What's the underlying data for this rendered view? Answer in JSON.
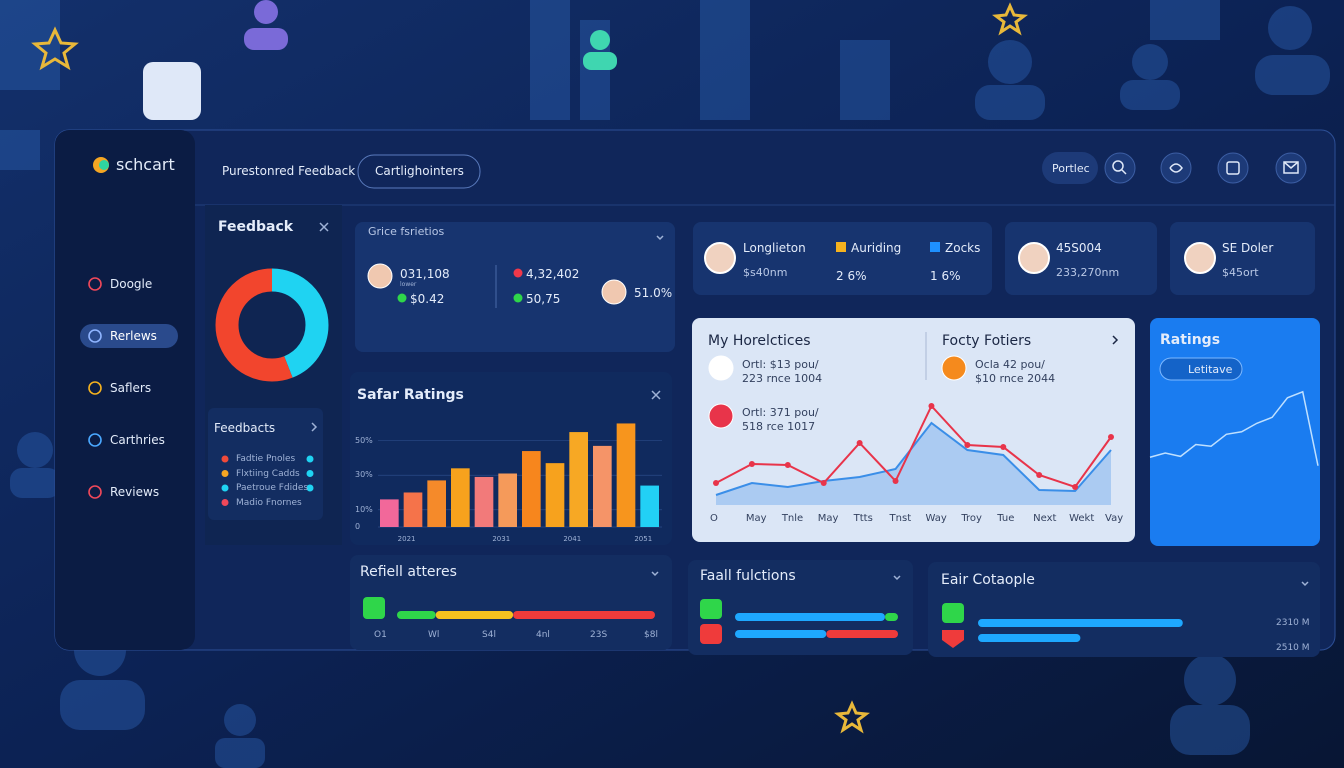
{
  "header": {
    "brand": "schcart",
    "tab": "Purestonred Feedback",
    "button": "Cartlighointers",
    "pill": "Portlec"
  },
  "sidebar": {
    "items": [
      "Doogle",
      "Rerlews",
      "Saflers",
      "Carthries",
      "Reviews"
    ],
    "active": 1,
    "icon_colors": [
      "#f0485a",
      "#8fb4ff",
      "#f5b21f",
      "#4aa8ff",
      "#f0485a"
    ]
  },
  "feedback": {
    "title": "Feedback",
    "donut": {
      "type": "pie",
      "values": [
        44,
        56
      ],
      "colors": [
        "#1fd3f2",
        "#f2452d"
      ]
    },
    "list_title": "Feedbacts",
    "list": [
      {
        "label": "Fadtie Pnoles",
        "color": "#f04a3a",
        "dot": "#1fd3f2"
      },
      {
        "label": "Flxtiing Cadds",
        "color": "#f5a623",
        "dot": "#1fd3f2"
      },
      {
        "label": "Paetroue Fdides",
        "color": "#1fd3f2",
        "dot": "#1fd3f2"
      },
      {
        "label": "Madio Fnornes",
        "color": "#f0485a",
        "dot": null
      }
    ]
  },
  "summary": {
    "title": "Grice fsrietios",
    "items": [
      {
        "value": "031,108",
        "sub": "lower",
        "color": null
      },
      {
        "value": "$0.42",
        "sub": null,
        "color": "#2fd64a"
      },
      {
        "value": "4,32,402",
        "sub": null,
        "color": "#f0384a"
      },
      {
        "value": "50,75",
        "sub": null,
        "color": "#2fd64a"
      },
      {
        "value": "51.0%",
        "sub": null,
        "color": null
      }
    ]
  },
  "bar_chart": {
    "type": "bar",
    "title": "Safar Ratings",
    "categories": [
      null,
      "2021",
      null,
      null,
      null,
      "2031",
      null,
      null,
      "2041",
      null,
      null,
      "2051"
    ],
    "values": [
      16,
      20,
      27,
      34,
      29,
      31,
      44,
      37,
      55,
      47,
      60,
      24
    ],
    "colors": [
      "#f2689a",
      "#f5734a",
      "#f58a2a",
      "#f7a21d",
      "#f27a7a",
      "#f59a5a",
      "#f7861d",
      "#f7a21d",
      "#f7a824",
      "#f59468",
      "#f7951d",
      "#22d0f5"
    ],
    "ylim": [
      0,
      62
    ],
    "yticks": [
      0,
      {
        "value": 10,
        "label": "10%"
      },
      {
        "value": 30,
        "label": "30%"
      },
      {
        "value": 50,
        "label": "50%"
      }
    ],
    "grid": true
  },
  "stats": [
    {
      "title": "Longlieton",
      "sub": "$s40nm",
      "legend": [
        {
          "label": "Auriding",
          "value": "2 6%",
          "color": "#f5b21f"
        },
        {
          "label": "Zocks",
          "value": "1 6%",
          "color": "#1e90ff"
        }
      ]
    },
    {
      "title": "45S004",
      "sub": "233,270nm",
      "legend": []
    },
    {
      "title": "SE Doler",
      "sub": "$45ort",
      "legend": []
    }
  ],
  "trend": {
    "title": "My Horelctices",
    "title2": "Focty Fotiers",
    "entries": [
      {
        "line1": "Ortl: $13 pou/",
        "line2": "223 rnce 1004"
      },
      {
        "line1": "Ocla 42 pou/",
        "line2": "$10 rnce 2044"
      },
      {
        "line1": "Ortl: 371 pou/",
        "line2": "518 rce 1017"
      }
    ],
    "chart": {
      "type": "line",
      "categories": [
        "O",
        "May",
        "Tnle",
        "May",
        "Ttts",
        "Tnst",
        "Way",
        "Troy",
        "Tue",
        "Next",
        "Wekt",
        "Vay"
      ],
      "ylim": [
        0,
        100
      ],
      "series": [
        {
          "color": "#e8344a",
          "values": [
            22,
            41,
            40,
            22,
            62,
            24,
            99,
            60,
            58,
            30,
            18,
            68
          ],
          "area": false
        },
        {
          "color": "#3a8ee8",
          "values": [
            10,
            22,
            18,
            24,
            28,
            36,
            82,
            55,
            50,
            15,
            14,
            55
          ],
          "area": true
        }
      ]
    }
  },
  "ratings": {
    "title": "Ratings",
    "button": "Letitave",
    "spark": {
      "type": "line",
      "ylim": [
        0,
        100
      ],
      "color": "#bfe0ff",
      "values": [
        15,
        20,
        16,
        30,
        28,
        42,
        45,
        55,
        62,
        85,
        92,
        5
      ]
    }
  },
  "bottom": [
    {
      "title": "Refiell atteres",
      "labels": [
        "O1",
        "Wl",
        "S4l",
        "4nl",
        "23S",
        "$8l"
      ],
      "bars": [
        {
          "segments": [
            15,
            30,
            55
          ],
          "colors": [
            "#2fd64a",
            "#f5c21f",
            "#ef3b3b"
          ]
        }
      ]
    },
    {
      "title": "Faall fulctions",
      "labels": [],
      "bars": [
        {
          "segments": [
            92,
            8
          ],
          "colors": [
            "#1ea8ff",
            "#2fd64a"
          ]
        },
        {
          "segments": [
            56,
            44
          ],
          "colors": [
            "#1ea8ff",
            "#ef3b3b"
          ]
        }
      ]
    },
    {
      "title": "Eair Cotaople",
      "labels": [
        "2310 M",
        "2510 M"
      ],
      "bars": [
        {
          "segments": [
            64
          ],
          "colors": [
            "#1ea8ff"
          ]
        },
        {
          "segments": [
            32
          ],
          "colors": [
            "#1ea8ff"
          ]
        }
      ]
    }
  ]
}
